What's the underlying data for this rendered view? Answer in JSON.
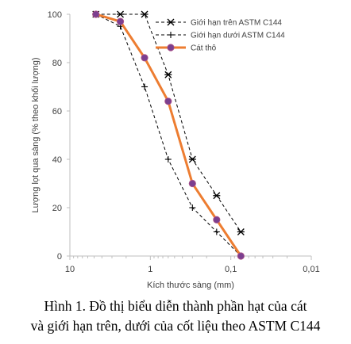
{
  "chart_data": {
    "type": "line",
    "title": "",
    "xlabel": "Kích thước sàng (mm)",
    "ylabel": "Lượng lọt qua sàng (% theo khối lượng)",
    "x_scale": "log",
    "x_reversed": true,
    "xlim": [
      10,
      0.01
    ],
    "ylim": [
      0,
      100
    ],
    "x_ticks": [
      "10",
      "1",
      "0,1",
      "0,01"
    ],
    "y_ticks": [
      "0",
      "20",
      "40",
      "60",
      "80",
      "100"
    ],
    "grid": false,
    "legend_position": "top-right",
    "series": [
      {
        "name": "Giới hạn trên ASTM C144",
        "style": "dashed",
        "marker": "x-star",
        "color": "#000000",
        "x": [
          4.75,
          2.36,
          1.18,
          0.6,
          0.3,
          0.15,
          0.075
        ],
        "y": [
          100,
          100,
          100,
          75,
          40,
          25,
          10
        ]
      },
      {
        "name": "Giới hạn dưới ASTM C144",
        "style": "dashed",
        "marker": "plus",
        "color": "#000000",
        "x": [
          4.75,
          2.36,
          1.18,
          0.6,
          0.3,
          0.15,
          0.075
        ],
        "y": [
          100,
          95,
          70,
          40,
          20,
          10,
          0
        ]
      },
      {
        "name": "Cát thô",
        "style": "solid",
        "marker": "circle",
        "color": "#ED7D31",
        "marker_color": "#7B3F8F",
        "x": [
          4.75,
          2.36,
          1.18,
          0.6,
          0.3,
          0.15,
          0.075
        ],
        "y": [
          100,
          97,
          82,
          64,
          30,
          15,
          0
        ]
      }
    ]
  },
  "caption": {
    "line1": "Hình 1. Đồ thị biểu diễn thành phần hạt của cát",
    "line2": "và giới hạn trên, dưới của cốt liệu theo ASTM C144"
  }
}
